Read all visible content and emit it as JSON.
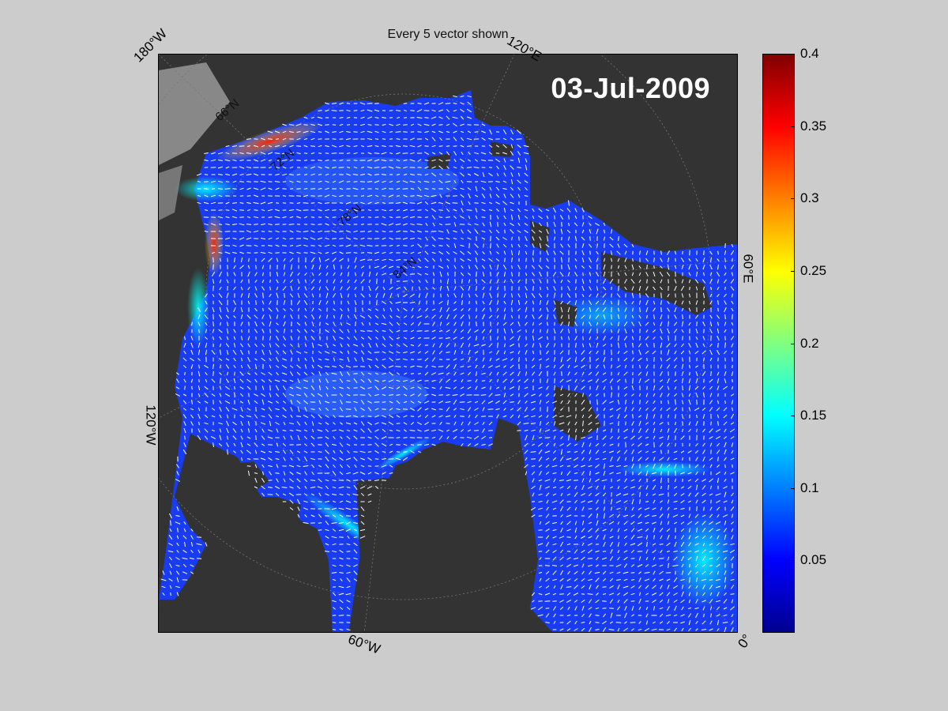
{
  "map": {
    "title": "Every 5 vector shown",
    "date": "03-Jul-2009",
    "edge_labels": {
      "top_left": "180°W",
      "top_right": "120°E",
      "right": "60°E",
      "left": "120°W",
      "bottom": "60°W",
      "bottom_right": "0°"
    },
    "inner_labels": {
      "lat_66": "66°N",
      "lat_72": "72°N",
      "lat_78": "78°N",
      "lat_84": "84°N"
    },
    "colors": {
      "land": "#333333",
      "shelf": "#888888",
      "ocean": "#1a3cf0",
      "vectors": "#ffffff"
    }
  },
  "colorbar": {
    "ticks": [
      "0.4",
      "0.35",
      "0.3",
      "0.25",
      "0.2",
      "0.15",
      "0.1",
      "0.05"
    ],
    "range": [
      0,
      0.4
    ],
    "colormap": "jet"
  }
}
